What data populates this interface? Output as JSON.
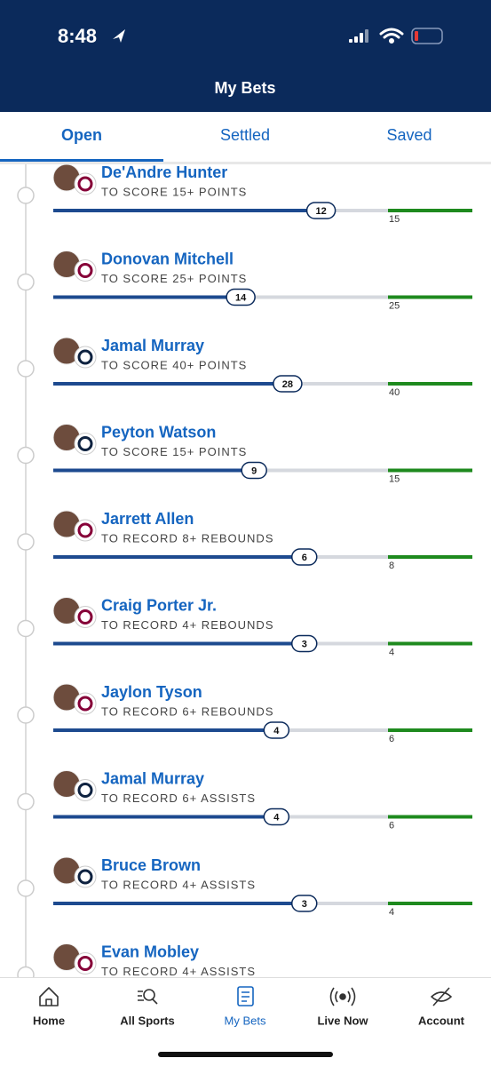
{
  "status_bar": {
    "time": "8:48"
  },
  "header": {
    "title": "My Bets"
  },
  "tabs": [
    "Open",
    "Settled",
    "Saved"
  ],
  "bets": [
    {
      "player": "De'Andre Hunter",
      "prop": "TO SCORE 15+ POINTS",
      "current": 12,
      "target": 15,
      "logo": "#860038"
    },
    {
      "player": "Donovan Mitchell",
      "prop": "TO SCORE 25+ POINTS",
      "current": 14,
      "target": 25,
      "logo": "#860038"
    },
    {
      "player": "Jamal Murray",
      "prop": "TO SCORE 40+ POINTS",
      "current": 28,
      "target": 40,
      "logo": "#0e2240"
    },
    {
      "player": "Peyton Watson",
      "prop": "TO SCORE 15+ POINTS",
      "current": 9,
      "target": 15,
      "logo": "#0e2240"
    },
    {
      "player": "Jarrett Allen",
      "prop": "TO RECORD 8+ REBOUNDS",
      "current": 6,
      "target": 8,
      "logo": "#860038"
    },
    {
      "player": "Craig Porter Jr.",
      "prop": "TO RECORD 4+ REBOUNDS",
      "current": 3,
      "target": 4,
      "logo": "#860038"
    },
    {
      "player": "Jaylon Tyson",
      "prop": "TO RECORD 6+ REBOUNDS",
      "current": 4,
      "target": 6,
      "logo": "#860038"
    },
    {
      "player": "Jamal Murray",
      "prop": "TO RECORD 6+ ASSISTS",
      "current": 4,
      "target": 6,
      "logo": "#0e2240"
    },
    {
      "player": "Bruce Brown",
      "prop": "TO RECORD 4+ ASSISTS",
      "current": 3,
      "target": 4,
      "logo": "#0e2240"
    },
    {
      "player": "Evan Mobley",
      "prop": "TO RECORD 4+ ASSISTS",
      "logo": "#860038"
    }
  ],
  "nav": [
    "Home",
    "All Sports",
    "My Bets",
    "Live Now",
    "Account"
  ]
}
